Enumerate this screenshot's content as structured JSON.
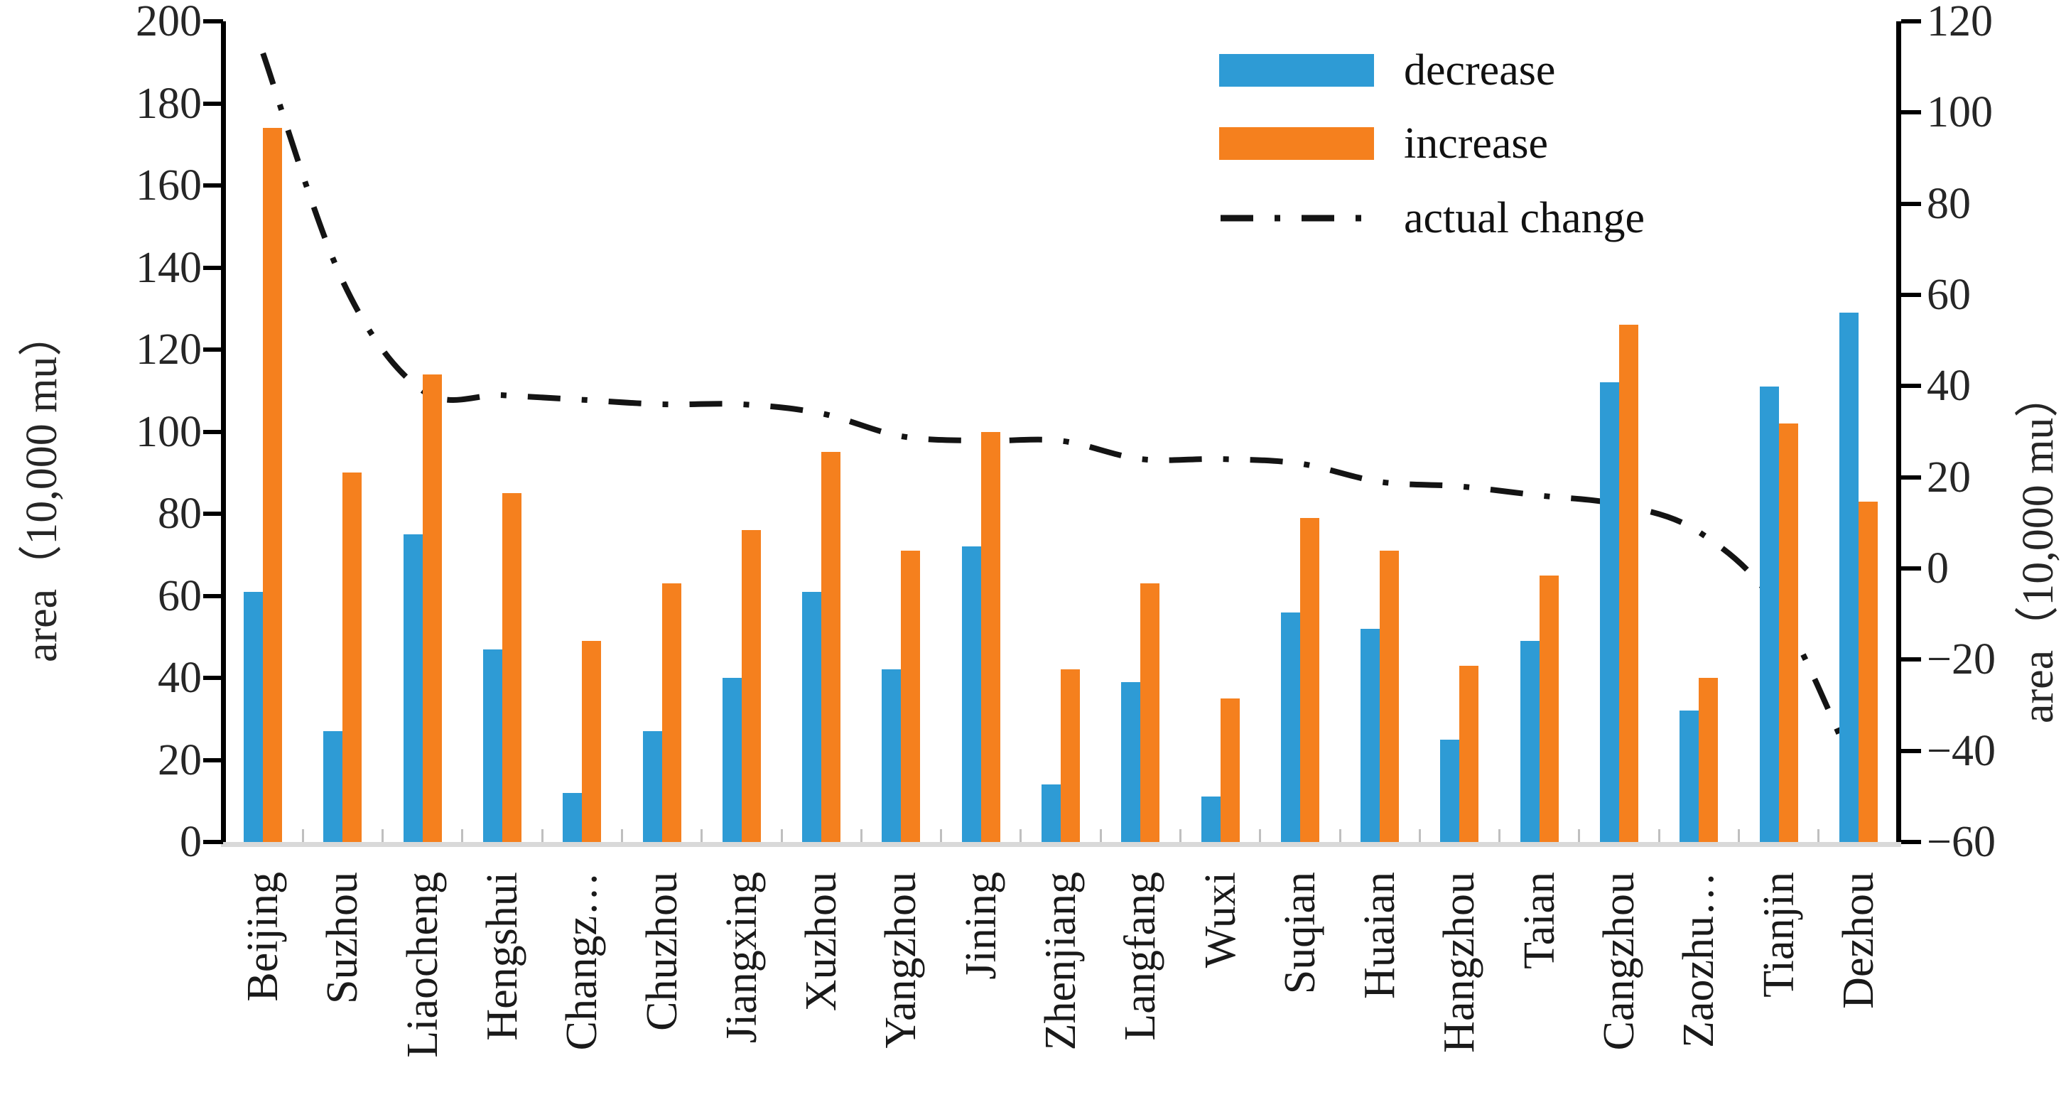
{
  "chart_data": {
    "type": "bar",
    "subtype": "grouped-bars-with-dashdot-line-combo",
    "title": "",
    "categories": [
      "Beijing",
      "Suzhou",
      "Liaocheng",
      "Hengshui",
      "Changz…",
      "Chuzhou",
      "Jiangxing",
      "Xuzhou",
      "Yangzhou",
      "Jining",
      "Zhenjiang",
      "Langfang",
      "Wuxi",
      "Suqian",
      "Huaian",
      "Hangzhou",
      "Taian",
      "Cangzhou",
      "Zaozhu…",
      "Tianjin",
      "Dezhou"
    ],
    "series": [
      {
        "name": "decrease",
        "type": "bar",
        "axis": "left",
        "color": "#2E9BD5",
        "values": [
          61,
          27,
          75,
          47,
          12,
          27,
          40,
          61,
          42,
          72,
          14,
          39,
          11,
          56,
          52,
          25,
          49,
          112,
          32,
          111,
          129
        ]
      },
      {
        "name": "increase",
        "type": "bar",
        "axis": "left",
        "color": "#F5801E",
        "values": [
          174,
          90,
          114,
          85,
          49,
          63,
          76,
          95,
          71,
          100,
          42,
          63,
          35,
          79,
          71,
          43,
          65,
          126,
          40,
          102,
          83
        ]
      },
      {
        "name": "actual change",
        "type": "line",
        "axis": "right",
        "color": "#141414",
        "line_style": "dash-dot",
        "values": [
          113,
          63,
          39,
          38,
          37,
          36,
          36,
          34,
          29,
          28,
          28,
          24,
          24,
          23,
          19,
          18,
          16,
          14,
          8,
          -9,
          -46
        ]
      }
    ],
    "left_axis": {
      "label": "area（10,000 mu）",
      "min": 0,
      "max": 200,
      "step": 20,
      "tick_labels": [
        "200",
        "180",
        "160",
        "140",
        "120",
        "100",
        "80",
        "60",
        "40",
        "20",
        "0"
      ]
    },
    "right_axis": {
      "label": "area（10,000 mu）",
      "min": -60,
      "max": 120,
      "step": 20,
      "tick_labels": [
        "120",
        "100",
        "80",
        "60",
        "40",
        "20",
        "0",
        "−20",
        "−40",
        "−60"
      ]
    },
    "legend_position": "top-right-inside",
    "grid": false,
    "background": "#FFFFFF",
    "bar_colors": {
      "decrease": "#2E9BD5",
      "increase": "#F5801E"
    },
    "line_color": "#141414",
    "baseline_color": "#D9D9D9"
  }
}
